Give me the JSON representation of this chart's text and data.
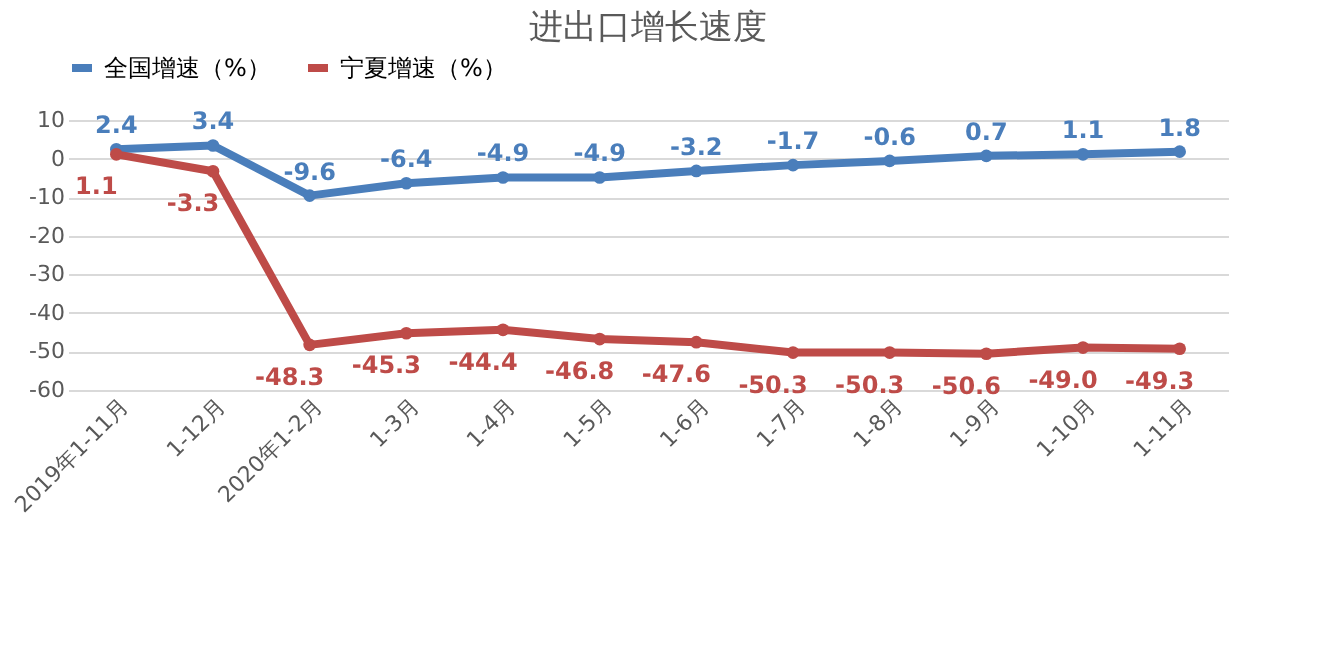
{
  "chart_data": {
    "type": "line",
    "title": "进出口增长速度",
    "categories": [
      "2019年1-11月",
      "1-12月",
      "2020年1-2月",
      "1-3月",
      "1-4月",
      "1-5月",
      "1-6月",
      "1-7月",
      "1-8月",
      "1-9月",
      "1-10月",
      "1-11月"
    ],
    "series": [
      {
        "name": "全国增速（%）",
        "color": "#4a7ebb",
        "values": [
          2.4,
          3.4,
          -9.6,
          -6.4,
          -4.9,
          -4.9,
          -3.2,
          -1.7,
          -0.6,
          0.7,
          1.1,
          1.8
        ],
        "value_labels": [
          "2.4",
          "3.4",
          "-9.6",
          "-6.4",
          "-4.9",
          "-4.9",
          "-3.2",
          "-1.7",
          "-0.6",
          "0.7",
          "1.1",
          "1.8"
        ]
      },
      {
        "name": "宁夏增速（%）",
        "color": "#be4b48",
        "values": [
          1.1,
          -3.3,
          -48.3,
          -45.3,
          -44.4,
          -46.8,
          -47.6,
          -50.3,
          -50.3,
          -50.6,
          -49.0,
          -49.3
        ],
        "value_labels": [
          "1.1",
          "-3.3",
          "-48.3",
          "-45.3",
          "-44.4",
          "-46.8",
          "-47.6",
          "-50.3",
          "-50.3",
          "-50.6",
          "-49.0",
          "-49.3"
        ]
      }
    ],
    "ylim": [
      -60,
      10
    ],
    "yticks": [
      -60,
      -50,
      -40,
      -30,
      -20,
      -10,
      0,
      10
    ],
    "grid": "y",
    "legend": "top",
    "marker": "circle",
    "line_style": "solid"
  }
}
